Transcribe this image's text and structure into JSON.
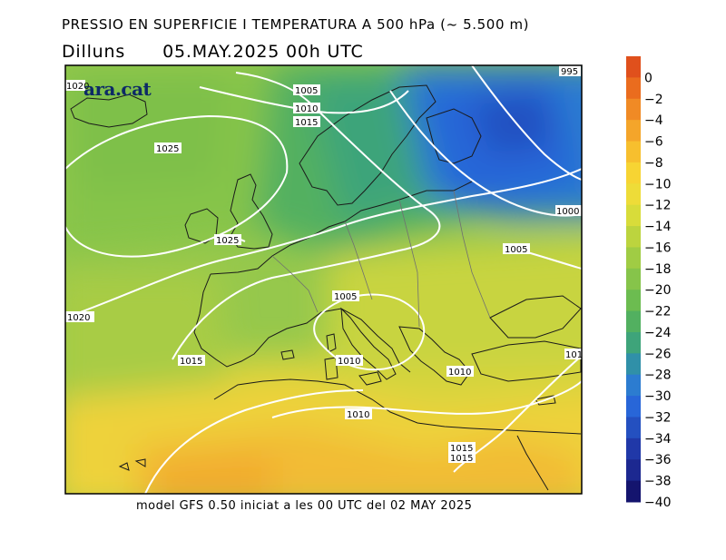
{
  "header": {
    "title": "PRESSIO EN SUPERFICIE I TEMPERATURA A 500 hPa (~ 5.500 m)",
    "day": "Dilluns",
    "datetime": "05.MAY.2025 00h UTC"
  },
  "logo": {
    "text": "ara.cat"
  },
  "footer": {
    "text": "model GFS 0.50 iniciat a les 00 UTC del 02 MAY 2025"
  },
  "colorbar": {
    "labels": [
      "0",
      "−2",
      "−4",
      "−6",
      "−8",
      "−10",
      "−12",
      "−14",
      "−16",
      "−18",
      "−20",
      "−22",
      "−24",
      "−26",
      "−28",
      "−30",
      "−32",
      "−34",
      "−36",
      "−38",
      "−40"
    ],
    "colors": [
      "#e0501c",
      "#ea6c1e",
      "#f08a25",
      "#f4a52a",
      "#f7bf2e",
      "#f7d433",
      "#eedc38",
      "#d8dc3a",
      "#bcd43e",
      "#a0cc44",
      "#86c44a",
      "#6cbc50",
      "#52b060",
      "#3ea47a",
      "#3090a8",
      "#2c7cd0",
      "#2866d8",
      "#2450c0",
      "#2038a8",
      "#1c2890",
      "#14146e"
    ]
  },
  "isobars": [
    {
      "label": "1020"
    },
    {
      "label": "995"
    },
    {
      "label": "1005"
    },
    {
      "label": "1010"
    },
    {
      "label": "1015"
    },
    {
      "label": "1025"
    },
    {
      "label": "1025"
    },
    {
      "label": "1000"
    },
    {
      "label": "1005"
    },
    {
      "label": "1005"
    },
    {
      "label": "1020"
    },
    {
      "label": "1015"
    },
    {
      "label": "1010"
    },
    {
      "label": "1010"
    },
    {
      "label": "101"
    },
    {
      "label": "1010"
    },
    {
      "label": "1015"
    },
    {
      "label": "1015"
    }
  ]
}
